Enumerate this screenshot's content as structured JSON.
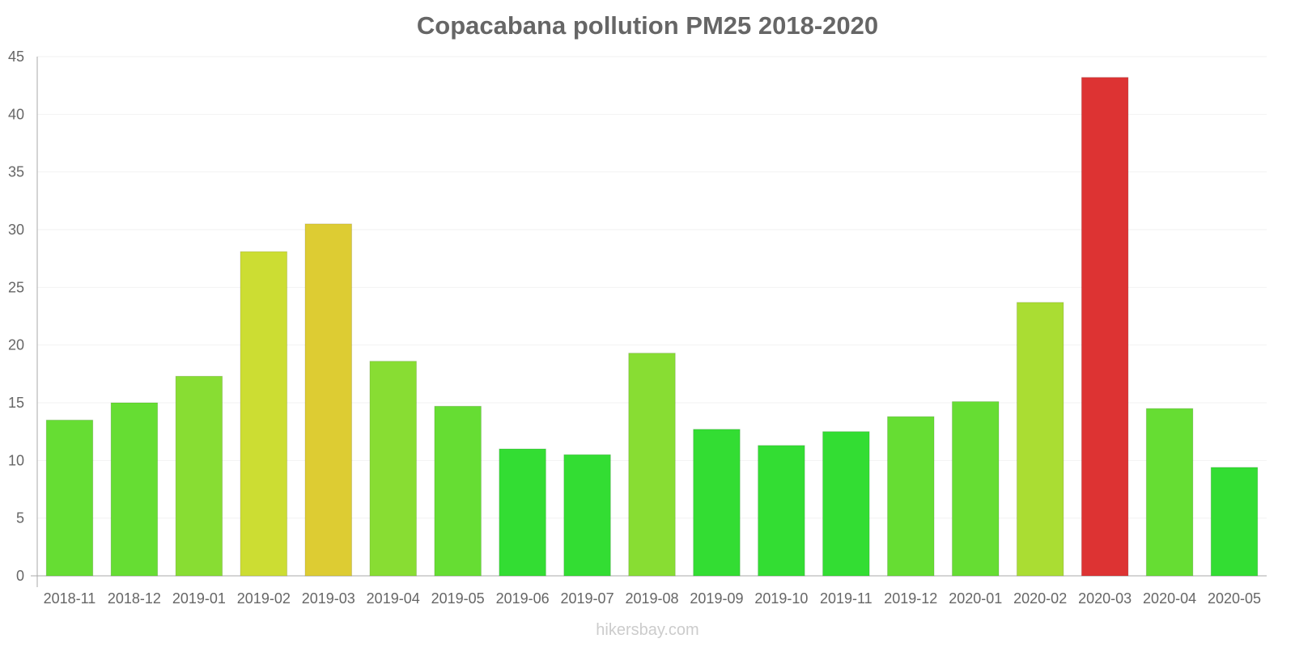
{
  "chart_data": {
    "type": "bar",
    "title": "Copacabana pollution PM25 2018-2020",
    "xlabel": "",
    "ylabel": "",
    "ylim": [
      0,
      45
    ],
    "yticks": [
      0,
      5,
      10,
      15,
      20,
      25,
      30,
      35,
      40,
      45
    ],
    "grid": true,
    "categories": [
      "2018-11",
      "2018-12",
      "2019-01",
      "2019-02",
      "2019-03",
      "2019-04",
      "2019-05",
      "2019-06",
      "2019-07",
      "2019-08",
      "2019-09",
      "2019-10",
      "2019-11",
      "2019-12",
      "2020-01",
      "2020-02",
      "2020-03",
      "2020-04",
      "2020-05"
    ],
    "values": [
      13.5,
      15,
      17.3,
      28.1,
      30.5,
      18.6,
      14.7,
      11,
      10.5,
      19.3,
      12.7,
      11.3,
      12.5,
      13.8,
      15.1,
      23.7,
      43.2,
      14.5,
      9.4
    ],
    "colors": [
      "#66dd33",
      "#66dd33",
      "#88dd33",
      "#ccdd33",
      "#ddcc33",
      "#88dd33",
      "#66dd33",
      "#33dd33",
      "#33dd33",
      "#88dd33",
      "#33dd33",
      "#33dd33",
      "#33dd33",
      "#66dd33",
      "#66dd33",
      "#aadd33",
      "#dd3333",
      "#66dd33",
      "#33dd33"
    ]
  },
  "watermark": "hikersbay.com"
}
